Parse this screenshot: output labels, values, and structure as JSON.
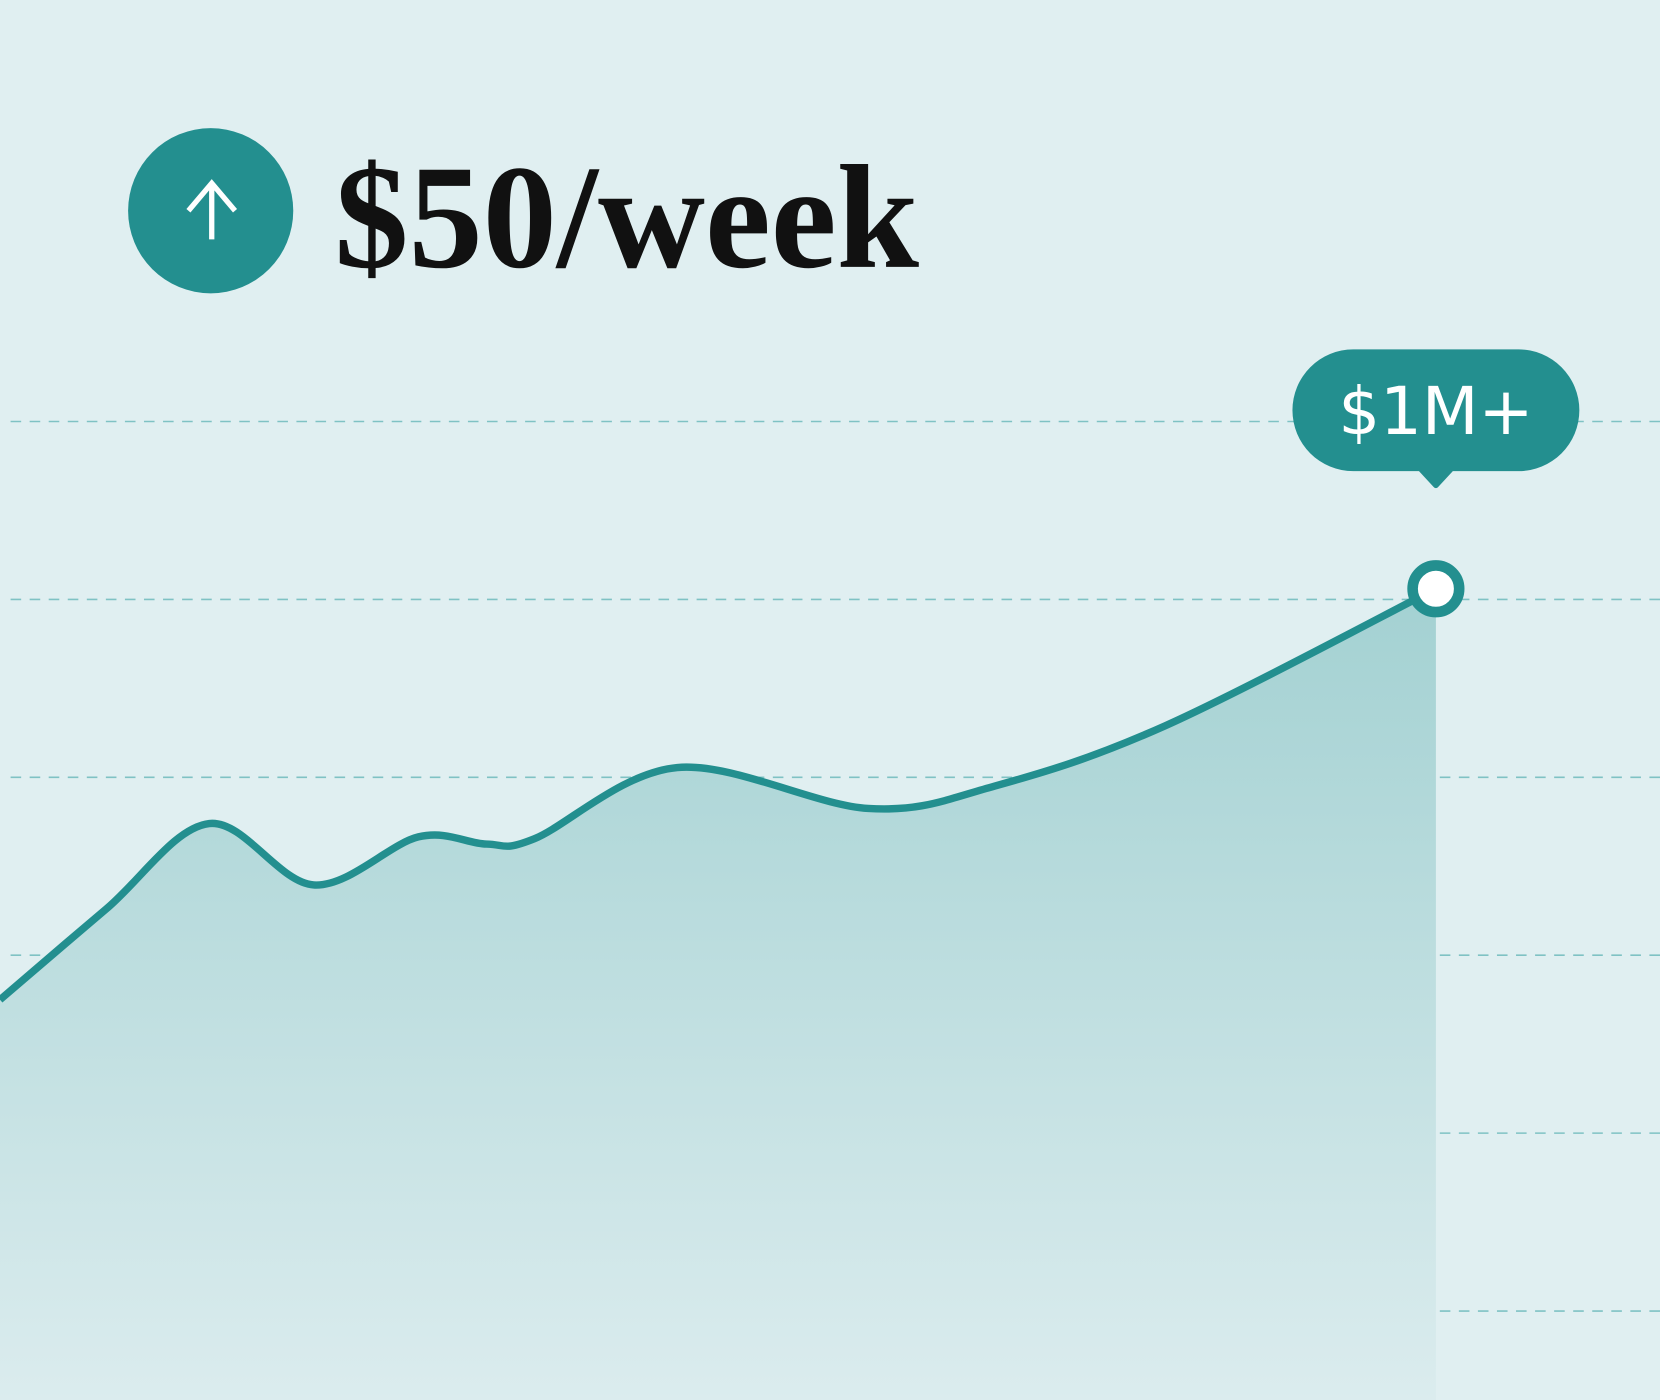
{
  "chart_data": {
    "type": "area",
    "title": "$50/week",
    "annotation": "$1M+",
    "x": [
      0,
      6.4,
      12.6,
      18.9,
      25.2,
      29.3,
      32.2,
      40.8,
      52.3,
      59.9,
      70.2,
      86.5
    ],
    "series": [
      {
        "color": "#238f8f",
        "values": [
          35,
          45.2,
          54.8,
          47.9,
          53.3,
          52.5,
          53.1,
          61.1,
          56.5,
          59,
          65.8,
          81.2
        ]
      }
    ],
    "xlim": [
      0,
      100
    ],
    "ylim": [
      0,
      100
    ],
    "yticks": [
      0,
      20,
      40,
      60,
      80,
      100
    ],
    "grid": true
  }
}
